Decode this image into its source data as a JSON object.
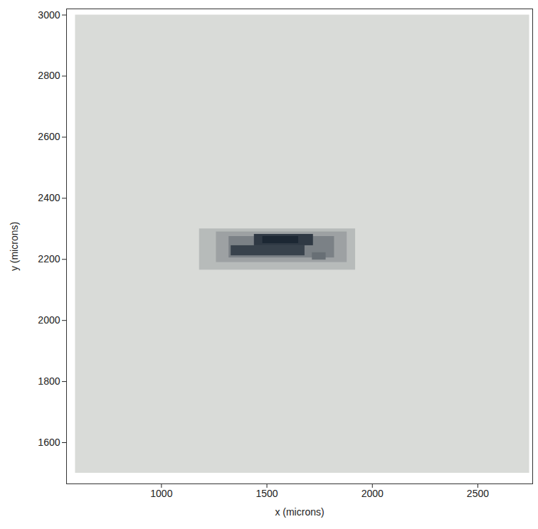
{
  "chart_data": {
    "type": "heatmap",
    "xlabel": "x (microns)",
    "ylabel": "y (microns)",
    "xlim": [
      550,
      2760
    ],
    "ylim": [
      1465,
      3020
    ],
    "xticks": [
      1000,
      1500,
      2000,
      2500
    ],
    "yticks": [
      1600,
      1800,
      2000,
      2200,
      2400,
      2600,
      2800,
      3000
    ],
    "value_range": [
      0,
      1
    ],
    "cells": [
      [
        592,
        2745,
        1500,
        3000,
        0
      ],
      [
        1180,
        1920,
        2165,
        2300,
        0.18
      ],
      [
        1260,
        1880,
        2190,
        2290,
        0.32
      ],
      [
        1320,
        1820,
        2205,
        2275,
        0.5
      ],
      [
        1330,
        1680,
        2212,
        2245,
        0.85
      ],
      [
        1440,
        1720,
        2245,
        2282,
        0.9
      ],
      [
        1480,
        1650,
        2252,
        2275,
        1
      ],
      [
        1715,
        1780,
        2198,
        2222,
        0.6
      ]
    ]
  }
}
